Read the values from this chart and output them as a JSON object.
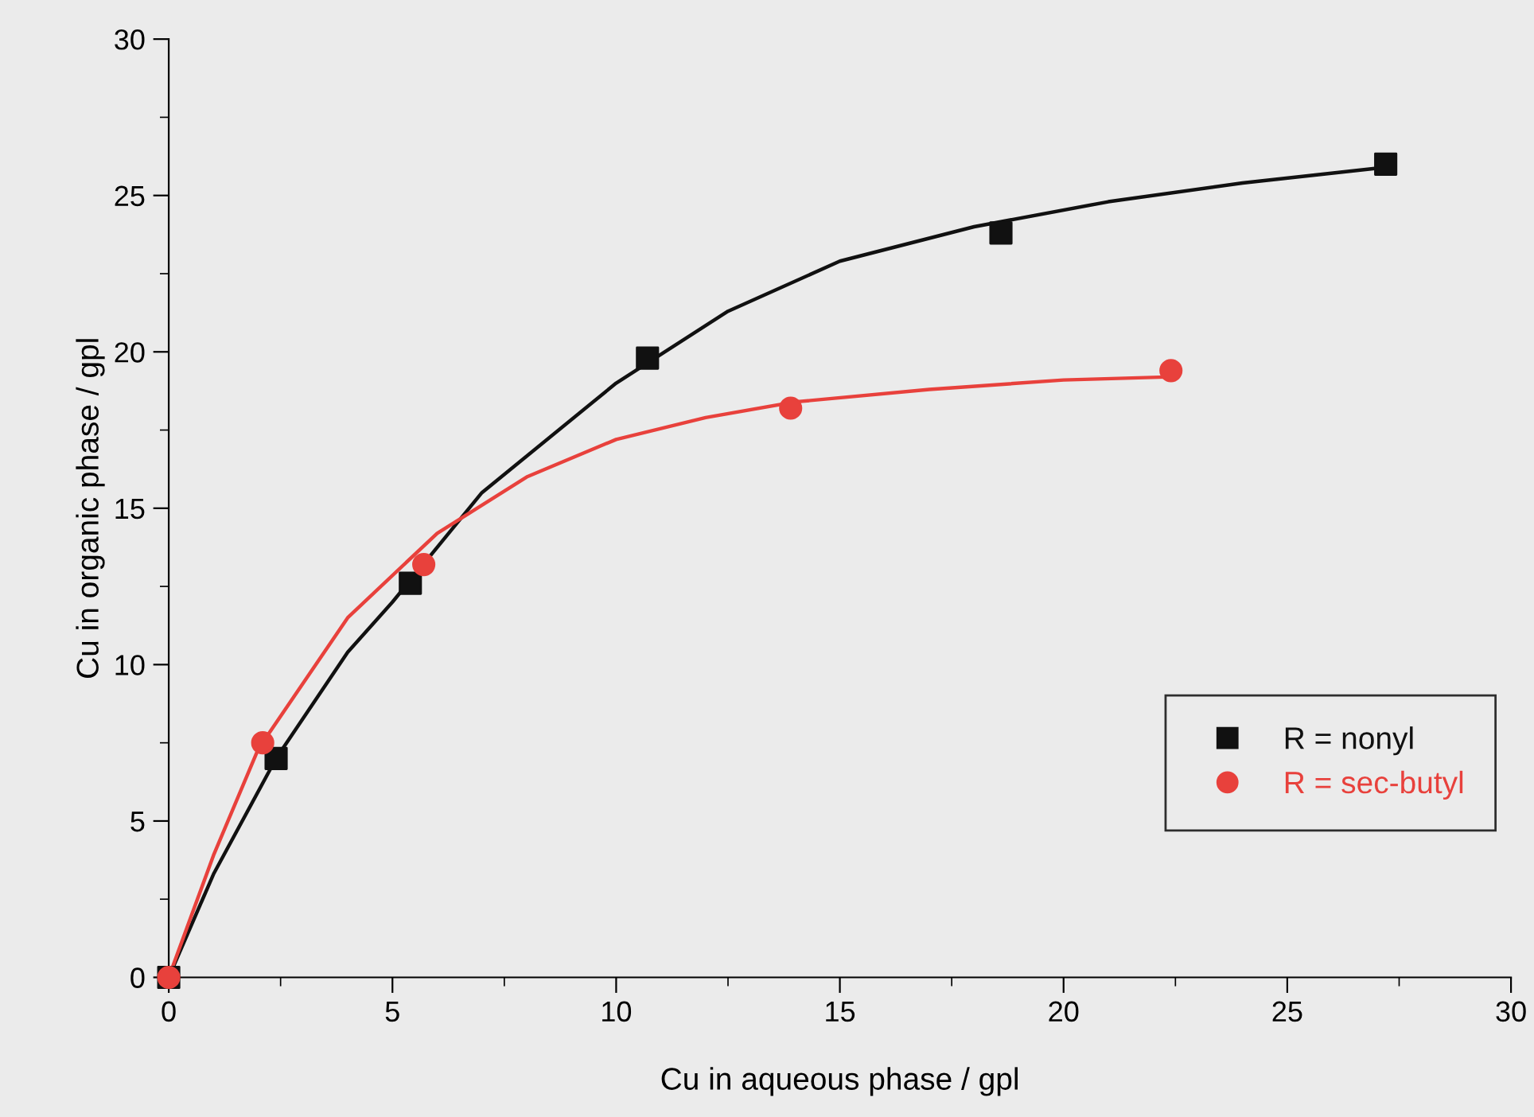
{
  "chart_data": {
    "type": "scatter",
    "xlabel": "Cu in aqueous phase / gpl",
    "ylabel": "Cu in organic phase / gpl",
    "xlim": [
      0,
      30
    ],
    "ylim": [
      0,
      30
    ],
    "xticks": [
      0,
      5,
      10,
      15,
      20,
      25,
      30
    ],
    "yticks": [
      0,
      5,
      10,
      15,
      20,
      25,
      30
    ],
    "grid": false,
    "legend": "lower right",
    "series": [
      {
        "name": "R = nonyl",
        "marker": "square",
        "color": "#111111",
        "x": [
          0,
          2.4,
          5.4,
          10.7,
          18.6,
          27.2
        ],
        "values": [
          0,
          7.0,
          12.6,
          19.8,
          23.8,
          26.0
        ]
      },
      {
        "name": "R = sec-butyl",
        "marker": "circle",
        "color": "#e8413c",
        "x": [
          0,
          2.1,
          5.7,
          13.9,
          22.4
        ],
        "values": [
          0,
          7.5,
          13.2,
          18.2,
          19.4
        ]
      },
      {
        "type": "line",
        "marker": "none",
        "line_style": "solid",
        "color": "#111111",
        "x": [
          0,
          1,
          2.4,
          4,
          5,
          7,
          10,
          12.5,
          15,
          18,
          21,
          24,
          27.2
        ],
        "values": [
          0,
          3.3,
          7.0,
          10.4,
          12.0,
          15.5,
          19.0,
          21.3,
          22.9,
          24.0,
          24.8,
          25.4,
          25.9
        ]
      },
      {
        "type": "line",
        "marker": "none",
        "line_style": "solid",
        "color": "#e8413c",
        "x": [
          0,
          1,
          2,
          4,
          6,
          8,
          10,
          12,
          14,
          17,
          20,
          22.4
        ],
        "values": [
          0,
          3.9,
          7.3,
          11.5,
          14.2,
          16.0,
          17.2,
          17.9,
          18.4,
          18.8,
          19.1,
          19.2
        ]
      }
    ]
  }
}
